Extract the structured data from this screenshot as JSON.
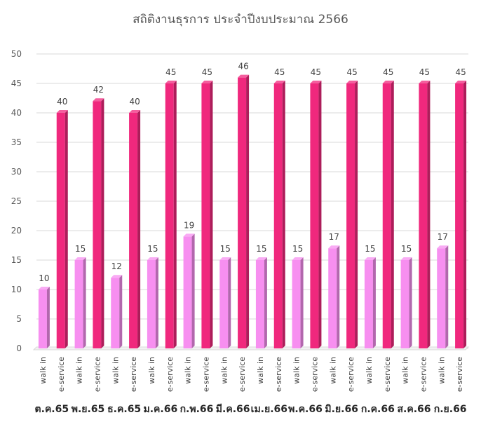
{
  "chart_data": {
    "type": "bar",
    "title": "สถิติงานธุรการ ประจำปีงบประมาณ 2566",
    "ylim": [
      0,
      50
    ],
    "yticks": [
      0,
      5,
      10,
      15,
      20,
      25,
      30,
      35,
      40,
      45,
      50
    ],
    "grid": true,
    "months": [
      "ต.ค.65",
      "พ.ย.65",
      "ธ.ค.65",
      "ม.ค.66",
      "ก.พ.66",
      "มี.ค.66",
      "เม.ย.66",
      "พ.ค.66",
      "มิ.ย.66",
      "ก.ค.66",
      "ส.ค.66",
      "ก.ย.66"
    ],
    "subcategories": [
      "walk in",
      "e-service"
    ],
    "series": [
      {
        "values": [
          10,
          15,
          12,
          15,
          19,
          15,
          15,
          15,
          17,
          15,
          15,
          17
        ],
        "color": "#f78ff0"
      },
      {
        "values": [
          40,
          42,
          40,
          45,
          45,
          46,
          45,
          45,
          45,
          45,
          45,
          45
        ],
        "color": "#f0287d"
      }
    ]
  }
}
